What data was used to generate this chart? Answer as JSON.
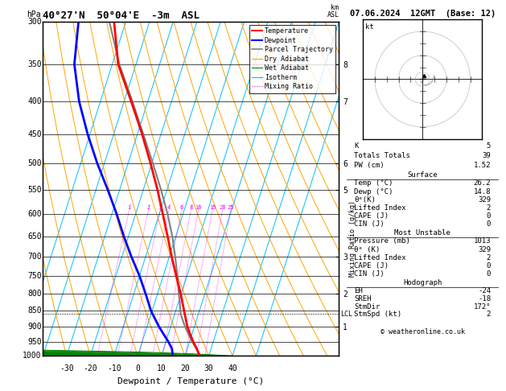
{
  "title_left": "40°27'N  50°04'E  -3m  ASL",
  "title_right": "07.06.2024  12GMT  (Base: 12)",
  "xlabel": "Dewpoint / Temperature (°C)",
  "ylabel_left": "hPa",
  "background_color": "#ffffff",
  "temp_profile": {
    "pressure": [
      1000,
      975,
      950,
      925,
      900,
      850,
      800,
      750,
      700,
      650,
      600,
      550,
      500,
      450,
      400,
      350,
      300
    ],
    "temp": [
      26.2,
      24.0,
      21.5,
      19.2,
      17.0,
      13.5,
      9.8,
      5.5,
      1.0,
      -3.5,
      -8.5,
      -14.0,
      -20.5,
      -28.0,
      -37.0,
      -47.5,
      -55.0
    ]
  },
  "dewp_profile": {
    "pressure": [
      1000,
      975,
      950,
      925,
      900,
      850,
      800,
      750,
      700,
      650,
      600,
      550,
      500,
      450,
      400,
      350,
      300
    ],
    "temp": [
      14.8,
      13.5,
      11.0,
      8.0,
      5.0,
      -0.5,
      -5.0,
      -10.0,
      -16.0,
      -22.0,
      -28.0,
      -35.0,
      -43.0,
      -51.0,
      -59.0,
      -66.0,
      -70.0
    ]
  },
  "parcel_profile": {
    "pressure": [
      1000,
      975,
      950,
      925,
      900,
      875,
      860,
      850,
      800,
      750,
      700,
      650,
      600,
      550,
      500,
      450,
      400,
      350,
      300
    ],
    "temp": [
      26.2,
      23.8,
      21.0,
      18.5,
      16.0,
      13.8,
      12.5,
      12.0,
      9.0,
      6.0,
      2.5,
      -1.5,
      -6.5,
      -12.5,
      -19.5,
      -27.5,
      -36.5,
      -47.0,
      -57.0
    ]
  },
  "lcl_pressure": 860,
  "surface_info": {
    "K": 5,
    "Totals Totals": 39,
    "PW (cm)": 1.52,
    "Temp_C": 26.2,
    "Dewp_C": 14.8,
    "theta_e_K": 329,
    "Lifted_Index": 2,
    "CAPE_J": 0,
    "CIN_J": 0
  },
  "most_unstable": {
    "Pressure_mb": 1013,
    "theta_e_K": 329,
    "Lifted_Index": 2,
    "CAPE_J": 0,
    "CIN_J": 0
  },
  "hodograph": {
    "EH": -24,
    "SREH": -18,
    "StmDir": 172,
    "StmSpd_kt": 2
  },
  "mixing_ratios": [
    1,
    2,
    3,
    4,
    6,
    8,
    10,
    15,
    20,
    25
  ],
  "isotherm_color": "#00bfff",
  "dry_adiabat_color": "#ffa500",
  "wet_adiabat_color": "#008000",
  "mixing_ratio_color": "#ff00ff",
  "temp_color": "#ff0000",
  "dewp_color": "#0000ff",
  "parcel_color": "#808080",
  "copyright": "© weatheronline.co.uk",
  "km_ticks_p": [
    350,
    400,
    500,
    550,
    700,
    800,
    900
  ],
  "km_ticks_lbl": [
    "8",
    "7",
    "6",
    "5",
    "3",
    "2",
    "1"
  ]
}
